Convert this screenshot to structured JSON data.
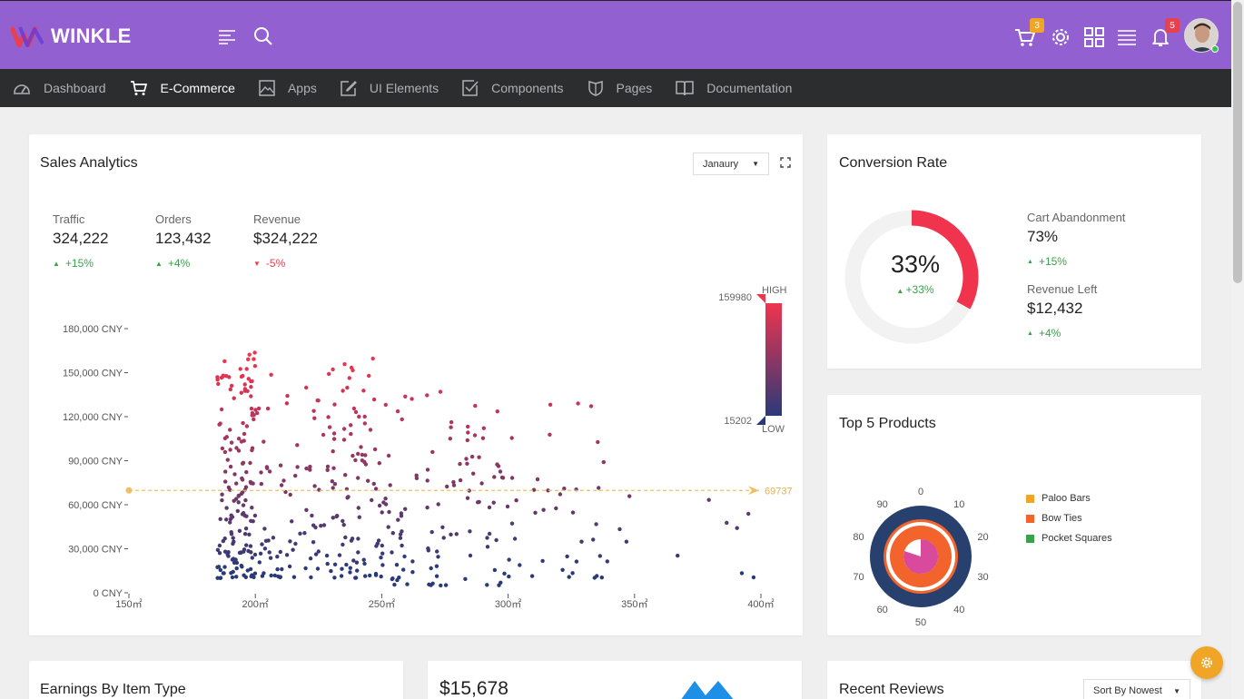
{
  "app": {
    "name": "WINKLE"
  },
  "topbar": {
    "cart_count": "3",
    "notif_count": "5",
    "colors": {
      "bar": "#9360d2",
      "cart_badge": "#f0a527",
      "notif_badge": "#e8414d"
    }
  },
  "nav": {
    "items": [
      {
        "label": "Dashboard",
        "icon": "dashboard-icon"
      },
      {
        "label": "E-Commerce",
        "icon": "cart-icon",
        "active": true
      },
      {
        "label": "Apps",
        "icon": "image-icon"
      },
      {
        "label": "UI Elements",
        "icon": "edit-icon"
      },
      {
        "label": "Components",
        "icon": "checkbox-icon"
      },
      {
        "label": "Pages",
        "icon": "shield-icon"
      },
      {
        "label": "Documentation",
        "icon": "book-icon"
      }
    ]
  },
  "sales": {
    "title": "Sales Analytics",
    "month": "Janaury",
    "stats": [
      {
        "label": "Traffic",
        "value": "324,222",
        "change": "+15%",
        "dir": "up"
      },
      {
        "label": "Orders",
        "value": "123,432",
        "change": "+4%",
        "dir": "up"
      },
      {
        "label": "Revenue",
        "value": "$324,222",
        "change": "-5%",
        "dir": "down"
      }
    ]
  },
  "chart_data": {
    "type": "scatter",
    "x_ticks": [
      "150㎡",
      "200㎡",
      "250㎡",
      "300㎡",
      "350㎡",
      "400㎡"
    ],
    "y_ticks": [
      "0 CNY",
      "30,000 CNY",
      "60,000 CNY",
      "90,000 CNY",
      "120,000 CNY",
      "150,000 CNY",
      "180,000 CNY"
    ],
    "xlim": [
      150,
      400
    ],
    "ylim": [
      0,
      180000
    ],
    "mark_line": {
      "value": 69737,
      "label": "69737"
    },
    "visual_map": {
      "min": 15202,
      "max": 159980,
      "high_label": "HIGH",
      "low_label": "LOW",
      "high_color": "#f0344e",
      "low_color": "#2a3a78"
    },
    "clusters": [
      {
        "x_range": [
          185,
          200
        ],
        "y_range": [
          10000,
          165000
        ],
        "count": 160
      },
      {
        "x_range": [
          200,
          250
        ],
        "y_range": [
          10000,
          160000
        ],
        "count": 170
      },
      {
        "x_range": [
          250,
          300
        ],
        "y_range": [
          5000,
          140000
        ],
        "count": 110
      },
      {
        "x_range": [
          300,
          340
        ],
        "y_range": [
          10000,
          135000
        ],
        "count": 40
      },
      {
        "x_range": [
          340,
          400
        ],
        "y_range": [
          10000,
          80000
        ],
        "count": 10
      }
    ]
  },
  "conversion": {
    "title": "Conversion Rate",
    "percent": "33%",
    "change": "+33%",
    "value": 33,
    "colors": {
      "track": "#f2f2f2",
      "fill": "#f0344e"
    },
    "items": [
      {
        "label": "Cart Abandonment",
        "value": "73%",
        "change": "+15%"
      },
      {
        "label": "Revenue Left",
        "value": "$12,432",
        "change": "+4%"
      }
    ]
  },
  "top_products": {
    "title": "Top 5 Products",
    "dial_labels": [
      "0",
      "10",
      "20",
      "30",
      "40",
      "50",
      "60",
      "70",
      "80",
      "90"
    ],
    "legend": [
      {
        "label": "Paloo Bars",
        "color": "#f0a527"
      },
      {
        "label": "Bow Ties",
        "color": "#f2642b"
      },
      {
        "label": "Pocket Squares",
        "color": "#3aa24b"
      }
    ]
  },
  "earnings": {
    "title": "Earnings By Item Type"
  },
  "revenue_card": {
    "amount": "$15,678"
  },
  "reviews": {
    "title": "Recent Reviews",
    "sort": "Sort By Nowest"
  }
}
